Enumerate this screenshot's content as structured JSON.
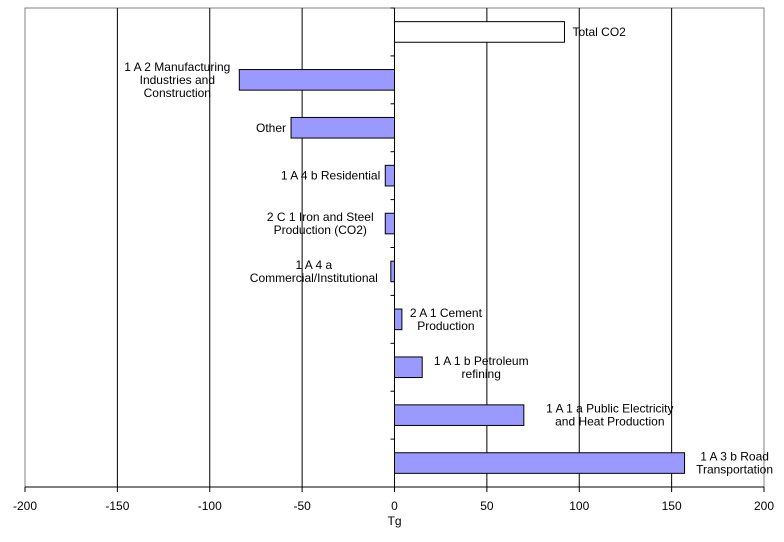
{
  "chart_data": {
    "type": "bar",
    "orientation": "horizontal",
    "title": "",
    "xlabel": "Tg",
    "ylabel": "",
    "xlim": [
      -200,
      200
    ],
    "xticks": [
      "-200",
      "-150",
      "-100",
      "-50",
      "0",
      "50",
      "100",
      "150",
      "200"
    ],
    "grid": "vertical",
    "legend": "none",
    "bars": [
      {
        "label": "Total CO2",
        "value": 92,
        "fill": "#ffffff",
        "label_side": "right"
      },
      {
        "label": "1 A 2 Manufacturing Industries and Construction",
        "value": -84,
        "fill": "#9999ff",
        "label_side": "left"
      },
      {
        "label": "Other",
        "value": -56,
        "fill": "#9999ff",
        "label_side": "left"
      },
      {
        "label": "1 A 4 b Residential",
        "value": -5,
        "fill": "#9999ff",
        "label_side": "left"
      },
      {
        "label": "2 C 1 Iron and Steel Production (CO2)",
        "value": -5,
        "fill": "#9999ff",
        "label_side": "left"
      },
      {
        "label": "1 A 4 a Commercial/Institutional",
        "value": -2,
        "fill": "#9999ff",
        "label_side": "left"
      },
      {
        "label": "2 A 1 Cement Production",
        "value": 4,
        "fill": "#9999ff",
        "label_side": "right"
      },
      {
        "label": "1 A 1 b Petroleum refining",
        "value": 15,
        "fill": "#9999ff",
        "label_side": "right"
      },
      {
        "label": "1 A 1 a Public Electricity and Heat Production",
        "value": 70,
        "fill": "#9999ff",
        "label_side": "right"
      },
      {
        "label": "1 A 3 b Road Transportation",
        "value": 157,
        "fill": "#9999ff",
        "label_side": "right"
      }
    ]
  },
  "label_lines": [
    [
      "Total CO2"
    ],
    [
      "1 A 2 Manufacturing",
      "Industries and",
      "Construction"
    ],
    [
      "Other"
    ],
    [
      "1 A 4 b Residential"
    ],
    [
      "2 C 1 Iron and Steel",
      "Production (CO2)"
    ],
    [
      "1 A 4 a",
      "Commercial/Institutional"
    ],
    [
      "2 A 1 Cement",
      "Production"
    ],
    [
      "1 A 1 b Petroleum",
      "refining"
    ],
    [
      "1 A 1 a Public Electricity",
      "and Heat Production"
    ],
    [
      "1 A 3 b Road",
      "Transportation"
    ]
  ]
}
